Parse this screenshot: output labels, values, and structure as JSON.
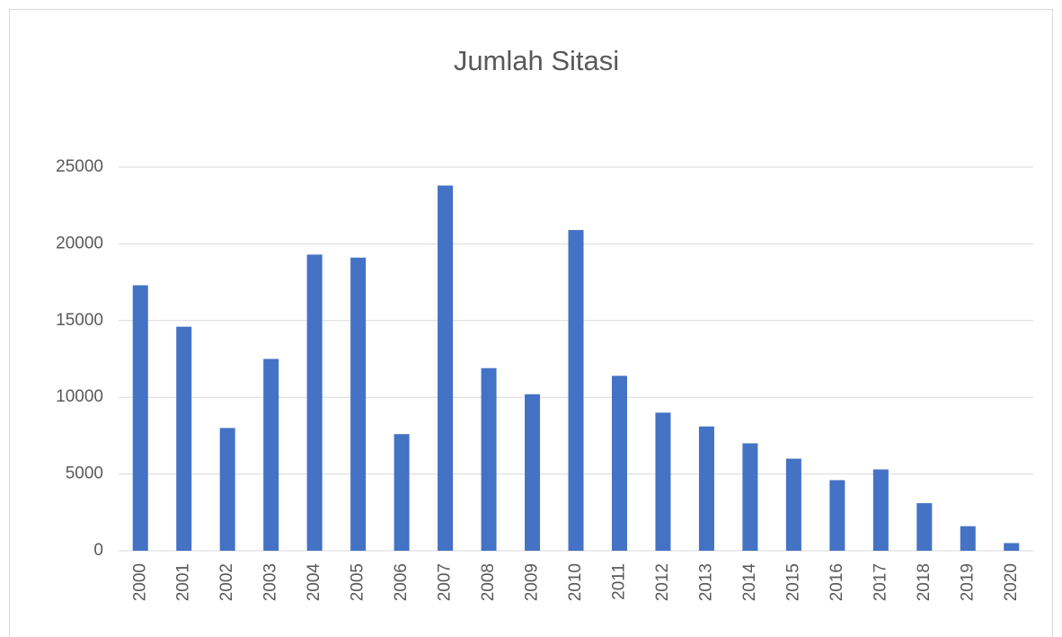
{
  "chart_data": {
    "type": "bar",
    "title": "Jumlah Sitasi",
    "categories": [
      "2000",
      "2001",
      "2002",
      "2003",
      "2004",
      "2005",
      "2006",
      "2007",
      "2008",
      "2009",
      "2010",
      "2011",
      "2012",
      "2013",
      "2014",
      "2015",
      "2016",
      "2017",
      "2018",
      "2019",
      "2020"
    ],
    "values": [
      17300,
      14600,
      8000,
      12500,
      19300,
      19100,
      7600,
      23800,
      11900,
      10200,
      20900,
      11400,
      9000,
      8100,
      7000,
      6000,
      4600,
      5300,
      3100,
      1600,
      500
    ],
    "color": "#4472c4",
    "ylim": [
      0,
      25000
    ],
    "yticks": [
      0,
      5000,
      10000,
      15000,
      20000,
      25000
    ],
    "grid": true
  }
}
